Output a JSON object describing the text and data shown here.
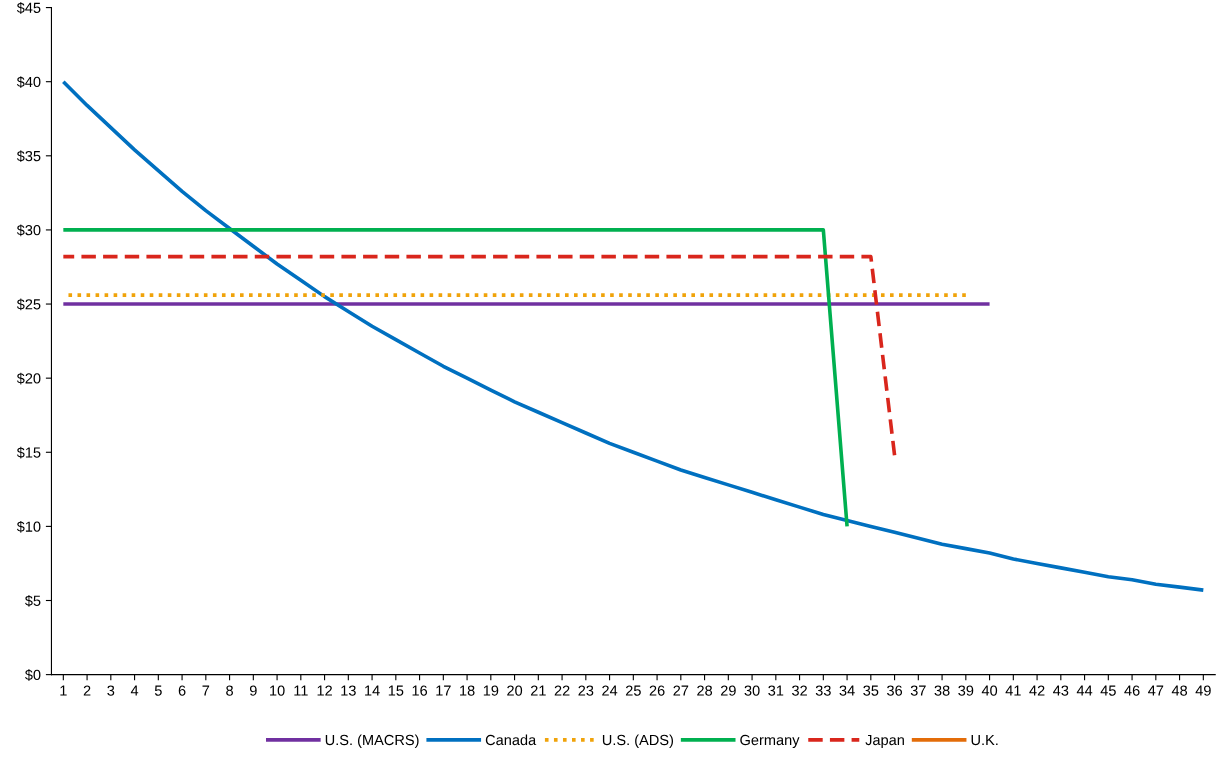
{
  "chart_data": {
    "type": "line",
    "categories": [
      "1",
      "2",
      "3",
      "4",
      "5",
      "6",
      "7",
      "8",
      "9",
      "10",
      "11",
      "12",
      "13",
      "14",
      "15",
      "16",
      "17",
      "18",
      "19",
      "20",
      "21",
      "22",
      "23",
      "24",
      "25",
      "26",
      "27",
      "28",
      "29",
      "30",
      "31",
      "32",
      "33",
      "34",
      "35",
      "36",
      "37",
      "38",
      "39",
      "40",
      "41",
      "42",
      "43",
      "44",
      "45",
      "46",
      "47",
      "48",
      "49"
    ],
    "series": [
      {
        "name": "U.S. (MACRS)",
        "color": "#7030a0",
        "line_style": "solid",
        "values": [
          25,
          25,
          25,
          25,
          25,
          25,
          25,
          25,
          25,
          25,
          25,
          25,
          25,
          25,
          25,
          25,
          25,
          25,
          25,
          25,
          25,
          25,
          25,
          25,
          25,
          25,
          25,
          25,
          25,
          25,
          25,
          25,
          25,
          25,
          25,
          25,
          25,
          25,
          25,
          25,
          null,
          null,
          null,
          null,
          null,
          null,
          null,
          null,
          null
        ]
      },
      {
        "name": "Canada",
        "color": "#0070c0",
        "line_style": "solid",
        "values": [
          40,
          38.4,
          36.9,
          35.4,
          34.0,
          32.6,
          31.3,
          30.1,
          28.9,
          27.7,
          26.6,
          25.5,
          24.5,
          23.5,
          22.6,
          21.7,
          20.8,
          20.0,
          19.2,
          18.4,
          17.7,
          17.0,
          16.3,
          15.6,
          15.0,
          14.4,
          13.8,
          13.3,
          12.8,
          12.3,
          11.8,
          11.3,
          10.8,
          10.4,
          10.0,
          9.6,
          9.2,
          8.8,
          8.5,
          8.2,
          7.8,
          7.5,
          7.2,
          6.9,
          6.6,
          6.4,
          6.1,
          5.9,
          5.7
        ]
      },
      {
        "name": "U.S. (ADS)",
        "color": "#f0a30a",
        "line_style": "dotted",
        "values": [
          25.6,
          25.6,
          25.6,
          25.6,
          25.6,
          25.6,
          25.6,
          25.6,
          25.6,
          25.6,
          25.6,
          25.6,
          25.6,
          25.6,
          25.6,
          25.6,
          25.6,
          25.6,
          25.6,
          25.6,
          25.6,
          25.6,
          25.6,
          25.6,
          25.6,
          25.6,
          25.6,
          25.6,
          25.6,
          25.6,
          25.6,
          25.6,
          25.6,
          25.6,
          25.6,
          25.6,
          25.6,
          25.6,
          25.6,
          null,
          null,
          null,
          null,
          null,
          null,
          null,
          null,
          null,
          null
        ]
      },
      {
        "name": "Germany",
        "color": "#00b050",
        "line_style": "solid",
        "values": [
          30,
          30,
          30,
          30,
          30,
          30,
          30,
          30,
          30,
          30,
          30,
          30,
          30,
          30,
          30,
          30,
          30,
          30,
          30,
          30,
          30,
          30,
          30,
          30,
          30,
          30,
          30,
          30,
          30,
          30,
          30,
          30,
          30,
          10,
          null,
          null,
          null,
          null,
          null,
          null,
          null,
          null,
          null,
          null,
          null,
          null,
          null,
          null,
          null
        ]
      },
      {
        "name": "Japan",
        "color": "#d9261c",
        "line_style": "dashed",
        "values": [
          28.2,
          28.2,
          28.2,
          28.2,
          28.2,
          28.2,
          28.2,
          28.2,
          28.2,
          28.2,
          28.2,
          28.2,
          28.2,
          28.2,
          28.2,
          28.2,
          28.2,
          28.2,
          28.2,
          28.2,
          28.2,
          28.2,
          28.2,
          28.2,
          28.2,
          28.2,
          28.2,
          28.2,
          28.2,
          28.2,
          28.2,
          28.2,
          28.2,
          28.2,
          28.2,
          14.8,
          null,
          null,
          null,
          null,
          null,
          null,
          null,
          null,
          null,
          null,
          null,
          null,
          null
        ]
      },
      {
        "name": "U.K.",
        "color": "#e36c09",
        "line_style": "solid",
        "values": [
          null,
          null,
          null,
          null,
          null,
          null,
          null,
          null,
          null,
          null,
          null,
          null,
          null,
          null,
          null,
          null,
          null,
          null,
          null,
          null,
          null,
          null,
          null,
          null,
          null,
          null,
          null,
          null,
          null,
          null,
          null,
          null,
          null,
          null,
          null,
          null,
          null,
          null,
          null,
          null,
          null,
          null,
          null,
          null,
          null,
          null,
          null,
          null,
          null
        ]
      }
    ],
    "ylim": [
      0,
      45
    ],
    "yticks": [
      {
        "value": 0,
        "label": "$0"
      },
      {
        "value": 5,
        "label": "$5"
      },
      {
        "value": 10,
        "label": "$10"
      },
      {
        "value": 15,
        "label": "$15"
      },
      {
        "value": 20,
        "label": "$20"
      },
      {
        "value": 25,
        "label": "$25"
      },
      {
        "value": 30,
        "label": "$30"
      },
      {
        "value": 35,
        "label": "$35"
      },
      {
        "value": 40,
        "label": "$40"
      },
      {
        "value": 45,
        "label": "$45"
      }
    ],
    "grid": false,
    "legend": "bottom",
    "marker": "none"
  }
}
